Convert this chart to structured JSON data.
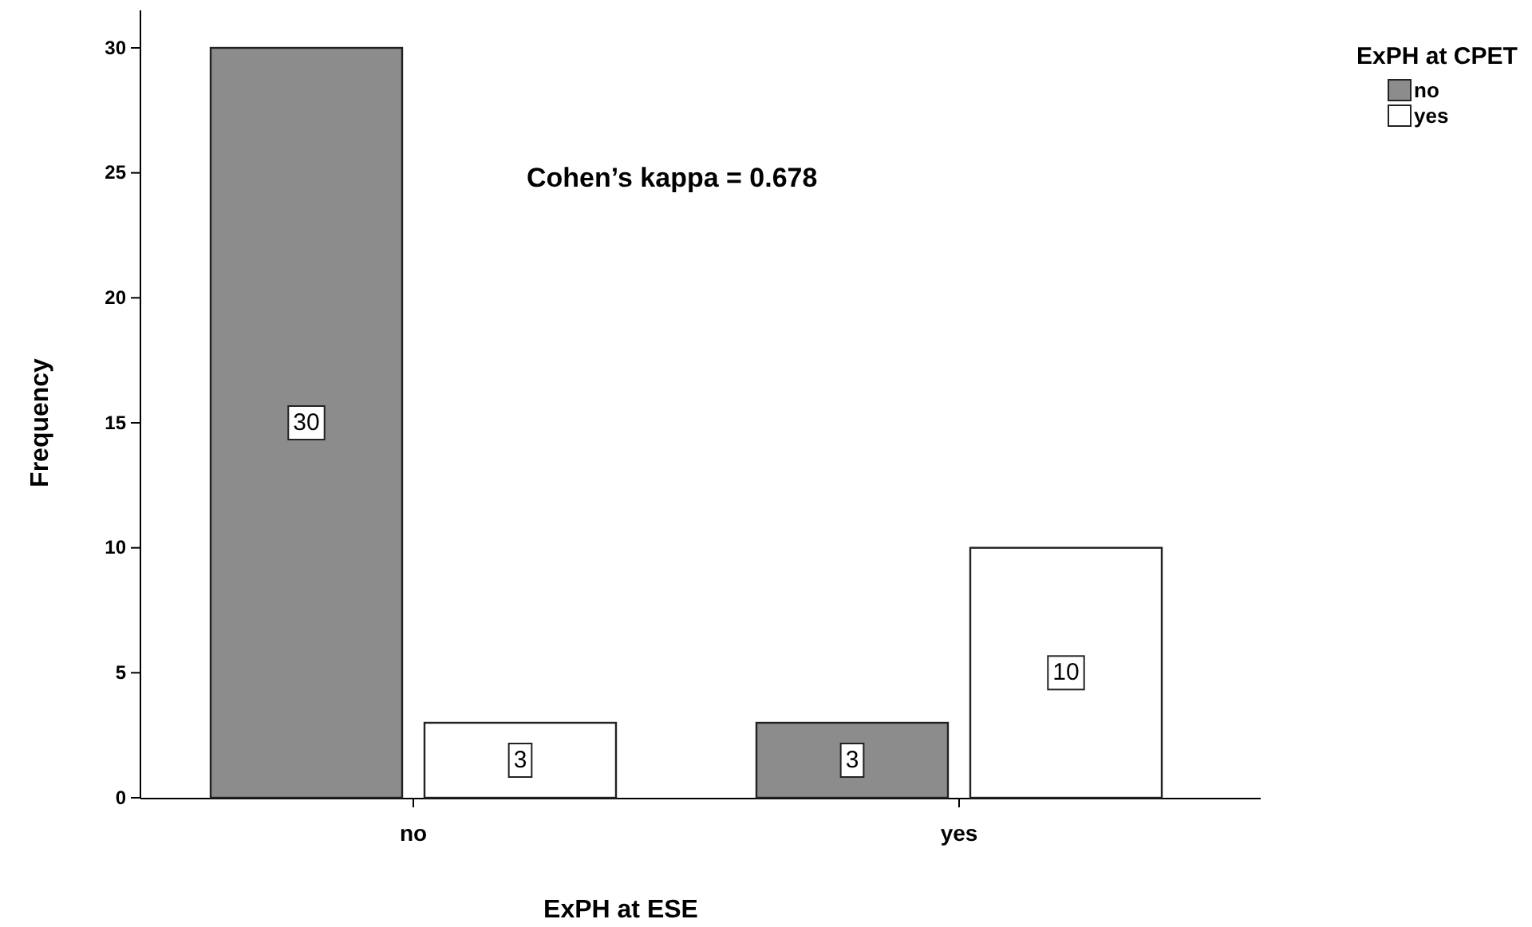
{
  "chart_data": {
    "type": "bar",
    "xlabel": "ExPH at ESE",
    "ylabel": "Frequency",
    "legend_title": "ExPH at CPET",
    "categories": [
      "no",
      "yes"
    ],
    "series": [
      {
        "name": "no",
        "color": "#8c8c8c",
        "values": [
          30,
          3
        ]
      },
      {
        "name": "yes",
        "color": "#ffffff",
        "values": [
          3,
          10
        ]
      }
    ],
    "ylim": [
      0,
      31.5
    ],
    "yticks": [
      0,
      5,
      10,
      15,
      20,
      25,
      30
    ],
    "data_labels": true,
    "legend": "top right",
    "grid": false,
    "annotations": [
      "Cohen’s kappa = 0.678"
    ]
  }
}
